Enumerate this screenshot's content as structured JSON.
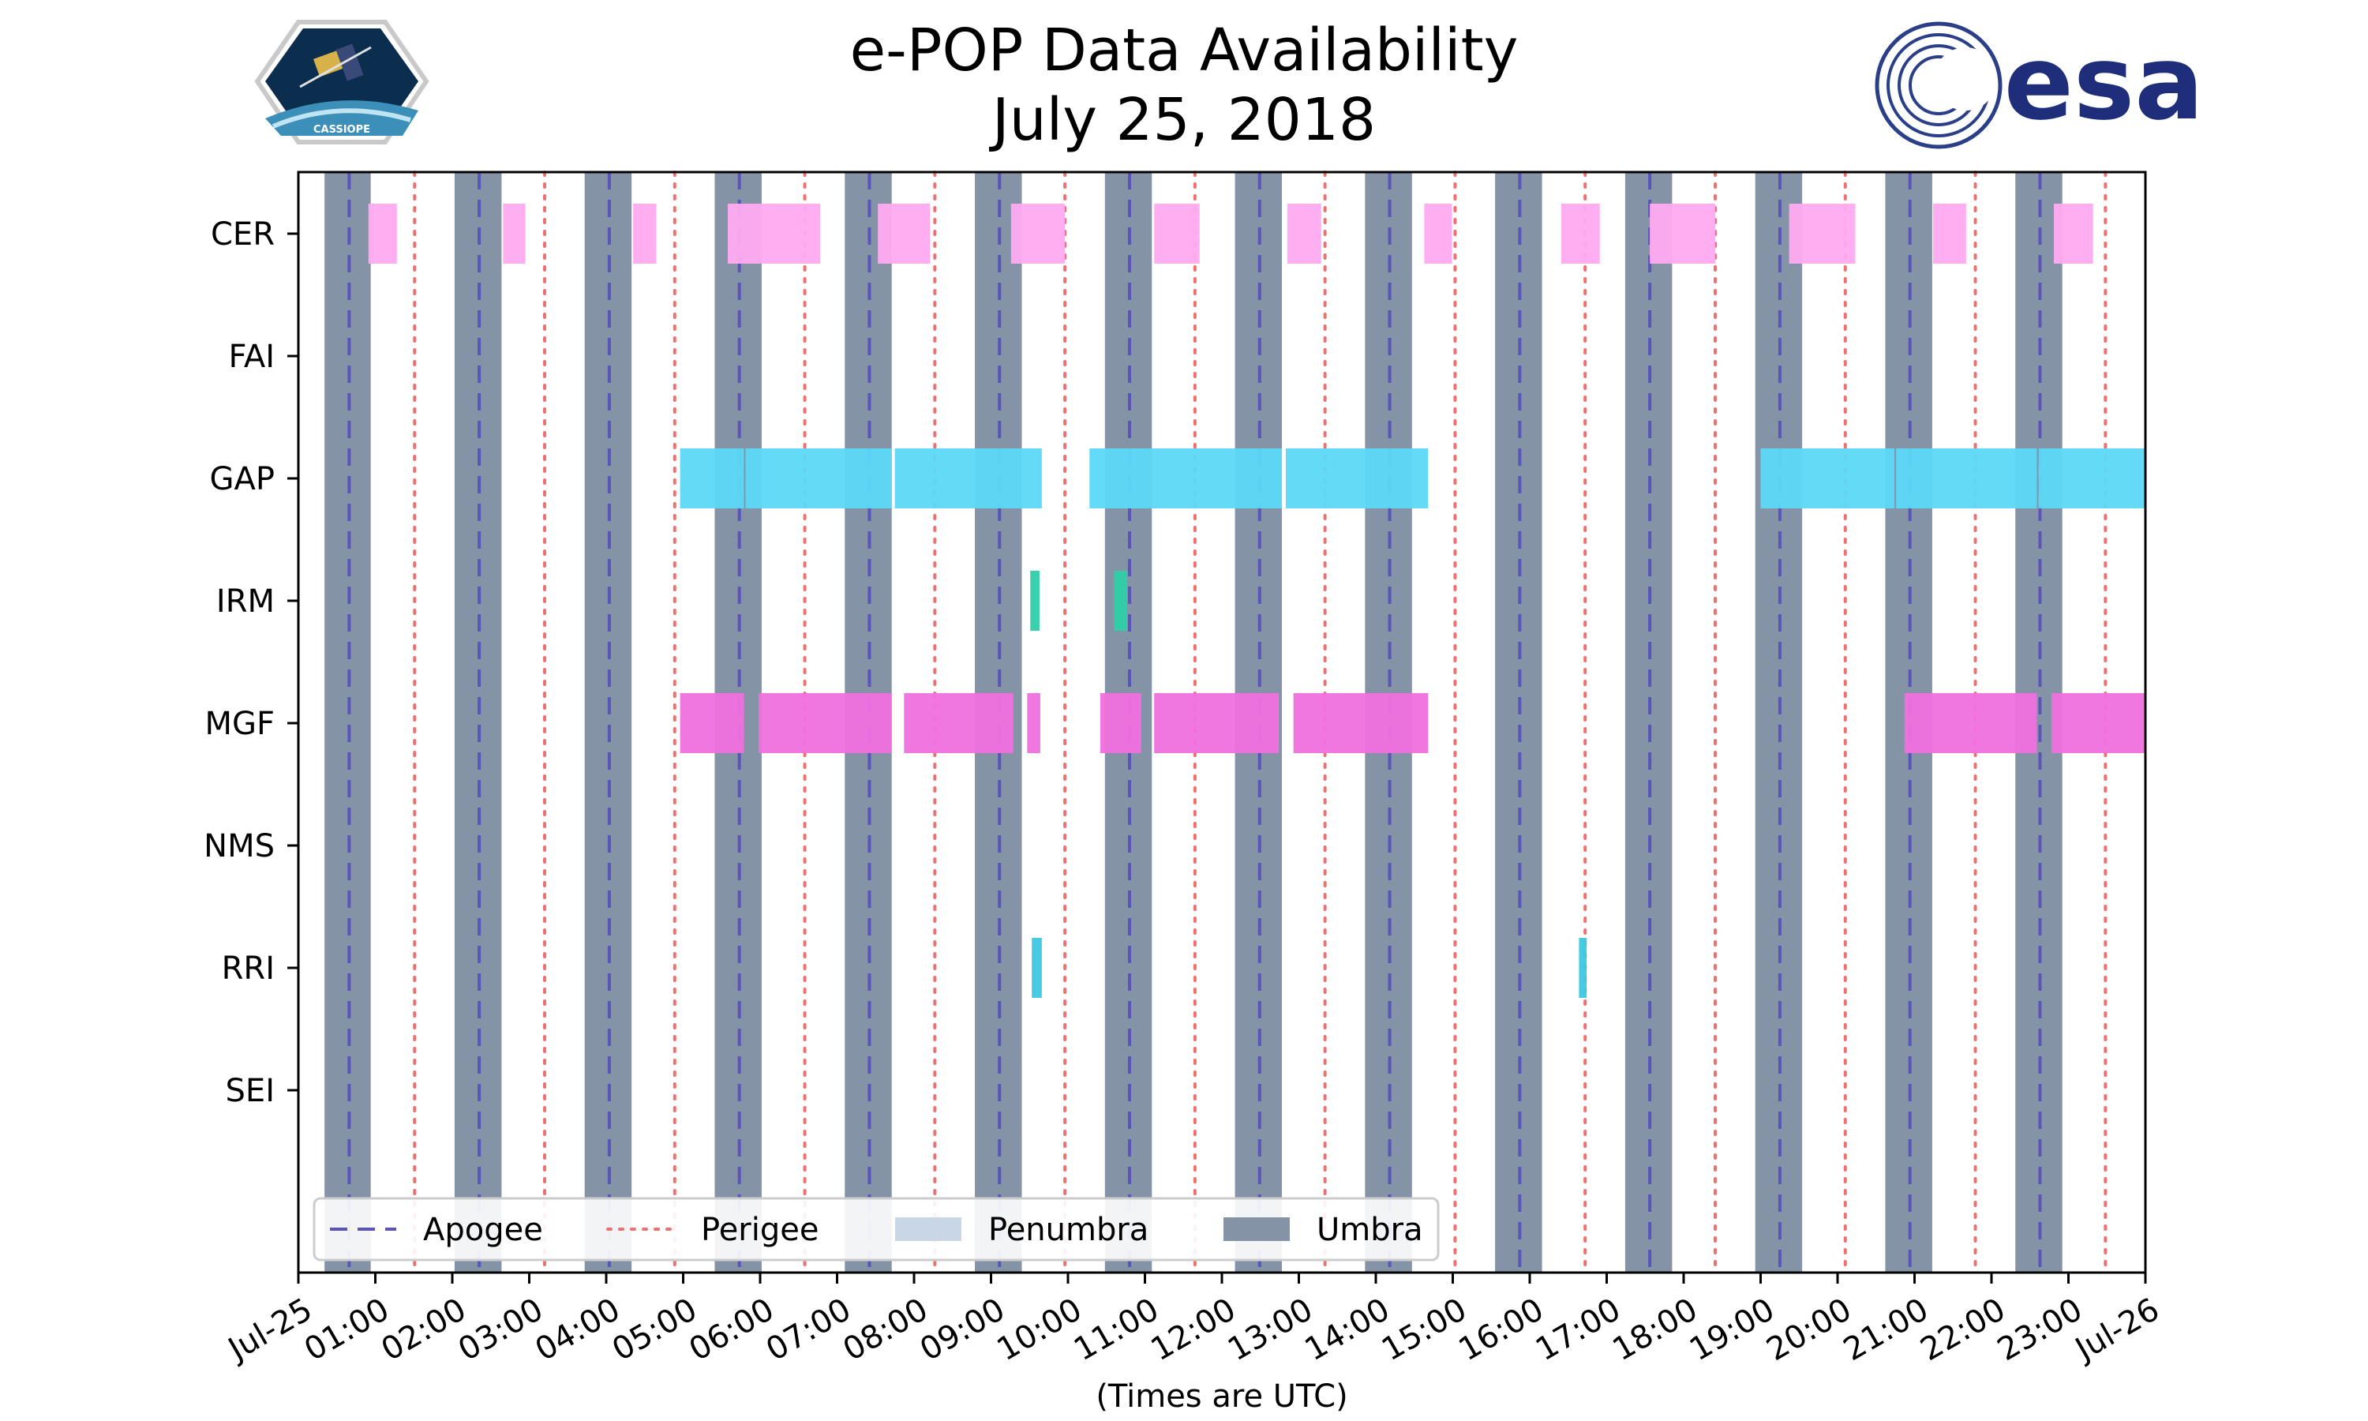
{
  "logos": {
    "left": "CASSIOPE",
    "right": "esa"
  },
  "colors": {
    "umbra": "#8593a6",
    "penumbra": "#c8d6e6",
    "apogee": "#5a55b8",
    "perigee": "#f07070",
    "CER": "#ffaaf0",
    "GAP": "#5cd8f6",
    "IRM": "#2ecfa6",
    "MGF": "#f070de",
    "RRI": "#3cc8e0"
  },
  "chart_data": {
    "type": "timeline",
    "title_line1": "e-POP Data Availability",
    "title_line2": "July 25, 2018",
    "xlabel": "(Times are UTC)",
    "xlim": [
      0,
      24
    ],
    "x_ticks": [
      {
        "t": 0,
        "label": "Jul-25"
      },
      {
        "t": 1,
        "label": "01:00"
      },
      {
        "t": 2,
        "label": "02:00"
      },
      {
        "t": 3,
        "label": "03:00"
      },
      {
        "t": 4,
        "label": "04:00"
      },
      {
        "t": 5,
        "label": "05:00"
      },
      {
        "t": 6,
        "label": "06:00"
      },
      {
        "t": 7,
        "label": "07:00"
      },
      {
        "t": 8,
        "label": "08:00"
      },
      {
        "t": 9,
        "label": "09:00"
      },
      {
        "t": 10,
        "label": "10:00"
      },
      {
        "t": 11,
        "label": "11:00"
      },
      {
        "t": 12,
        "label": "12:00"
      },
      {
        "t": 13,
        "label": "13:00"
      },
      {
        "t": 14,
        "label": "14:00"
      },
      {
        "t": 15,
        "label": "15:00"
      },
      {
        "t": 16,
        "label": "16:00"
      },
      {
        "t": 17,
        "label": "17:00"
      },
      {
        "t": 18,
        "label": "18:00"
      },
      {
        "t": 19,
        "label": "19:00"
      },
      {
        "t": 20,
        "label": "20:00"
      },
      {
        "t": 21,
        "label": "21:00"
      },
      {
        "t": 22,
        "label": "22:00"
      },
      {
        "t": 23,
        "label": "23:00"
      },
      {
        "t": 24,
        "label": "Jul-26"
      }
    ],
    "instruments": [
      "CER",
      "FAI",
      "GAP",
      "IRM",
      "MGF",
      "NMS",
      "RRI",
      "SEI"
    ],
    "umbra": [
      [
        0.34,
        0.94
      ],
      [
        2.03,
        2.64
      ],
      [
        3.72,
        4.33
      ],
      [
        5.41,
        6.02
      ],
      [
        7.1,
        7.71
      ],
      [
        8.79,
        9.4
      ],
      [
        10.48,
        11.09
      ],
      [
        12.17,
        12.78
      ],
      [
        13.86,
        14.47
      ],
      [
        15.55,
        16.16
      ],
      [
        17.24,
        17.85
      ],
      [
        18.93,
        19.54
      ],
      [
        20.62,
        21.23
      ],
      [
        22.31,
        22.92
      ]
    ],
    "apogee": [
      0.66,
      2.35,
      4.04,
      5.73,
      7.42,
      9.11,
      10.8,
      12.49,
      14.18,
      15.87,
      17.56,
      19.25,
      20.94,
      22.63
    ],
    "perigee": [
      1.51,
      3.2,
      4.89,
      6.58,
      8.27,
      9.96,
      11.65,
      13.34,
      15.03,
      16.72,
      18.41,
      20.1,
      21.79,
      23.48
    ],
    "data": {
      "CER": [
        [
          0.91,
          1.28
        ],
        [
          2.66,
          2.95
        ],
        [
          4.35,
          4.65
        ],
        [
          5.58,
          6.78
        ],
        [
          7.53,
          8.21
        ],
        [
          9.26,
          9.96
        ],
        [
          11.12,
          11.71
        ],
        [
          12.85,
          13.29
        ],
        [
          14.63,
          14.99
        ],
        [
          16.41,
          16.91
        ],
        [
          17.56,
          18.41
        ],
        [
          19.37,
          20.23
        ],
        [
          21.24,
          21.67
        ],
        [
          22.81,
          23.32
        ]
      ],
      "FAI": [],
      "GAP": [
        [
          4.96,
          5.79
        ],
        [
          5.81,
          7.71
        ],
        [
          7.75,
          9.66
        ],
        [
          10.28,
          12.78
        ],
        [
          12.83,
          14.68
        ],
        [
          19.0,
          20.74
        ],
        [
          20.76,
          22.59
        ],
        [
          22.61,
          24.0
        ]
      ],
      "IRM": [
        [
          9.51,
          9.63
        ],
        [
          10.6,
          10.77
        ]
      ],
      "MGF": [
        [
          4.96,
          5.79
        ],
        [
          5.98,
          7.71
        ],
        [
          7.87,
          9.29
        ],
        [
          9.47,
          9.64
        ],
        [
          10.42,
          10.95
        ],
        [
          11.12,
          12.74
        ],
        [
          12.93,
          14.68
        ],
        [
          20.87,
          22.59
        ],
        [
          22.78,
          24.0
        ]
      ],
      "NMS": [],
      "RRI": [
        [
          9.53,
          9.66
        ],
        [
          16.64,
          16.74
        ]
      ],
      "SEI": []
    },
    "legend": [
      {
        "key": "apogee",
        "label": "Apogee",
        "style": "dashed"
      },
      {
        "key": "perigee",
        "label": "Perigee",
        "style": "dotted"
      },
      {
        "key": "penumbra",
        "label": "Penumbra",
        "style": "patch"
      },
      {
        "key": "umbra",
        "label": "Umbra",
        "style": "patch"
      }
    ]
  }
}
